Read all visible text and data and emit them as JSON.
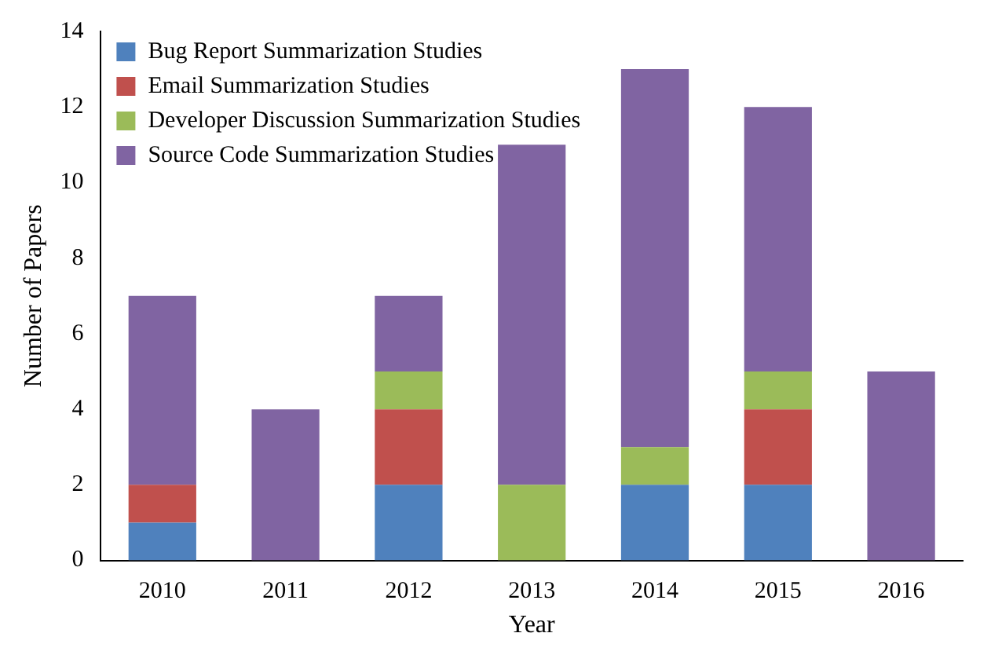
{
  "chart_data": {
    "type": "bar",
    "stacked": true,
    "xlabel": "Year",
    "ylabel": "Number of Papers",
    "categories": [
      "2010",
      "2011",
      "2012",
      "2013",
      "2014",
      "2015",
      "2016"
    ],
    "series": [
      {
        "name": "Bug Report Summarization Studies",
        "color": "#4f81bd",
        "values": [
          1,
          0,
          2,
          0,
          2,
          2,
          0
        ]
      },
      {
        "name": "Email Summarization Studies",
        "color": "#c0504d",
        "values": [
          1,
          0,
          2,
          0,
          0,
          2,
          0
        ]
      },
      {
        "name": "Developer Discussion Summarization Studies",
        "color": "#9bbb59",
        "values": [
          0,
          0,
          1,
          2,
          1,
          1,
          0
        ]
      },
      {
        "name": "Source Code Summarization Studies",
        "color": "#8064a2",
        "values": [
          5,
          4,
          2,
          9,
          10,
          7,
          5
        ]
      }
    ],
    "ylim": [
      0,
      14
    ],
    "yticks": [
      0,
      2,
      4,
      6,
      8,
      10,
      12,
      14
    ],
    "grid": false,
    "legend": "top left"
  }
}
